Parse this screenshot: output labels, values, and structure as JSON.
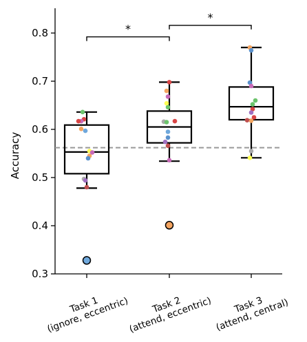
{
  "chart_data": {
    "type": "box",
    "ylabel": "Accuracy",
    "ylim": [
      0.3,
      0.85
    ],
    "yticks": [
      0.3,
      0.4,
      0.5,
      0.6,
      0.7,
      0.8
    ],
    "ytick_labels": [
      "0.3",
      "0.4",
      "0.5",
      "0.6",
      "0.7",
      "0.8"
    ],
    "categories": [
      [
        "Task 1",
        "(ignore, eccentric)"
      ],
      [
        "Task 2",
        "(attend, eccentric)"
      ],
      [
        "Task 3",
        "(attend, central)"
      ]
    ],
    "chance_level": 0.562,
    "boxes": [
      {
        "whisker_low": 0.478,
        "q1": 0.508,
        "median": 0.553,
        "q3": 0.609,
        "whisker_high": 0.636,
        "outliers": [
          {
            "value": 0.328,
            "color": "#6fa8dc"
          }
        ]
      },
      {
        "whisker_low": 0.534,
        "q1": 0.572,
        "median": 0.605,
        "q3": 0.638,
        "whisker_high": 0.698,
        "outliers": [
          {
            "value": 0.401,
            "color": "#f4a460"
          }
        ]
      },
      {
        "whisker_low": 0.541,
        "q1": 0.62,
        "median": 0.647,
        "q3": 0.688,
        "whisker_high": 0.77,
        "outliers": []
      }
    ],
    "points": [
      [
        {
          "value": 0.636,
          "color": "#6cc36c"
        },
        {
          "value": 0.621,
          "color": "#d94545"
        },
        {
          "value": 0.617,
          "color": "#c86ab8"
        },
        {
          "value": 0.617,
          "color": "#d94545"
        },
        {
          "value": 0.601,
          "color": "#f4a460"
        },
        {
          "value": 0.597,
          "color": "#6fa8dc"
        },
        {
          "value": 0.555,
          "color": "#ffff55"
        },
        {
          "value": 0.552,
          "color": "#c86ab8"
        },
        {
          "value": 0.545,
          "color": "#f4a460"
        },
        {
          "value": 0.54,
          "color": "#5a91cc"
        },
        {
          "value": 0.497,
          "color": "#aaaaaa"
        },
        {
          "value": 0.494,
          "color": "#a070c0"
        },
        {
          "value": 0.48,
          "color": "#c05050"
        }
      ],
      [
        {
          "value": 0.698,
          "color": "#d94545"
        },
        {
          "value": 0.68,
          "color": "#f4a460"
        },
        {
          "value": 0.668,
          "color": "#c86ab8"
        },
        {
          "value": 0.654,
          "color": "#ffff55"
        },
        {
          "value": 0.646,
          "color": "#6cc36c"
        },
        {
          "value": 0.617,
          "color": "#d94545"
        },
        {
          "value": 0.616,
          "color": "#aaaaaa"
        },
        {
          "value": 0.615,
          "color": "#6cc36c"
        },
        {
          "value": 0.595,
          "color": "#6fa8dc"
        },
        {
          "value": 0.583,
          "color": "#5a91cc"
        },
        {
          "value": 0.574,
          "color": "#a070c0"
        },
        {
          "value": 0.566,
          "color": "#c05050"
        },
        {
          "value": 0.536,
          "color": "#c86ab8"
        }
      ],
      [
        {
          "value": 0.77,
          "color": "#f4a460"
        },
        {
          "value": 0.764,
          "color": "#5a91cc"
        },
        {
          "value": 0.697,
          "color": "#5a91cc"
        },
        {
          "value": 0.69,
          "color": "#c86ab8"
        },
        {
          "value": 0.66,
          "color": "#6cc36c"
        },
        {
          "value": 0.652,
          "color": "#6cc36c"
        },
        {
          "value": 0.642,
          "color": "#d94545"
        },
        {
          "value": 0.635,
          "color": "#a070c0"
        },
        {
          "value": 0.625,
          "color": "#d94545"
        },
        {
          "value": 0.619,
          "color": "#c05050"
        },
        {
          "value": 0.618,
          "color": "#f4a460"
        },
        {
          "value": 0.555,
          "color": "#aaaaaa"
        },
        {
          "value": 0.541,
          "color": "#ffff55"
        }
      ]
    ],
    "significance": [
      {
        "from": 0,
        "to": 1,
        "label": "*"
      },
      {
        "from": 1,
        "to": 2,
        "label": "*"
      }
    ],
    "colors": {
      "axis": "#000000",
      "box": "#000000",
      "chance_line": "#999999"
    }
  }
}
